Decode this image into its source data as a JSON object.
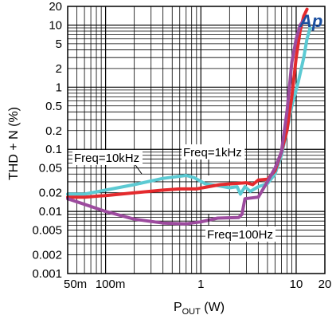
{
  "chart_data": {
    "type": "line",
    "title": "",
    "xlabel": {
      "main": "P",
      "sub": "OUT",
      "unit": " (W)"
    },
    "ylabel": "THD + N (%)",
    "x_scale": "log",
    "y_scale": "log",
    "xlim": [
      0.04,
      20
    ],
    "ylim": [
      0.001,
      20
    ],
    "grid": true,
    "x_ticks": [
      {
        "value": 0.05,
        "label": "50m"
      },
      {
        "value": 0.1,
        "label": "100m"
      },
      {
        "value": 1,
        "label": "1"
      },
      {
        "value": 10,
        "label": "10"
      },
      {
        "value": 20,
        "label": "20"
      }
    ],
    "y_ticks": [
      {
        "value": 20,
        "label": "20"
      },
      {
        "value": 10,
        "label": "10"
      },
      {
        "value": 5,
        "label": "5"
      },
      {
        "value": 2,
        "label": "2"
      },
      {
        "value": 1,
        "label": "1"
      },
      {
        "value": 0.5,
        "label": "0.5"
      },
      {
        "value": 0.2,
        "label": "0.2"
      },
      {
        "value": 0.1,
        "label": "0.1"
      },
      {
        "value": 0.05,
        "label": "0.05"
      },
      {
        "value": 0.02,
        "label": "0.02"
      },
      {
        "value": 0.01,
        "label": "0.01"
      },
      {
        "value": 0.005,
        "label": "0.005"
      },
      {
        "value": 0.002,
        "label": "0.002"
      },
      {
        "value": 0.001,
        "label": "0.001"
      }
    ],
    "series": [
      {
        "name": "Freq=10kHz",
        "color": "#5ccad3",
        "points": [
          [
            0.04,
            0.019
          ],
          [
            0.06,
            0.019
          ],
          [
            0.1,
            0.022
          ],
          [
            0.2,
            0.027
          ],
          [
            0.4,
            0.034
          ],
          [
            0.7,
            0.038
          ],
          [
            0.85,
            0.035
          ],
          [
            1.1,
            0.028
          ],
          [
            1.5,
            0.026
          ],
          [
            2.0,
            0.024
          ],
          [
            2.4,
            0.025
          ],
          [
            2.6,
            0.019
          ],
          [
            2.9,
            0.025
          ],
          [
            3.3,
            0.021
          ],
          [
            4.0,
            0.025
          ],
          [
            5.0,
            0.028
          ],
          [
            6.0,
            0.04
          ],
          [
            7.0,
            0.08
          ],
          [
            8.0,
            0.2
          ],
          [
            9.0,
            0.5
          ],
          [
            10.5,
            1.2
          ],
          [
            12,
            3
          ],
          [
            13,
            6
          ],
          [
            14,
            9
          ]
        ]
      },
      {
        "name": "Freq=1kHz",
        "color": "#e42a2d",
        "points": [
          [
            0.04,
            0.017
          ],
          [
            0.06,
            0.017
          ],
          [
            0.1,
            0.018
          ],
          [
            0.2,
            0.02
          ],
          [
            0.4,
            0.022
          ],
          [
            0.6,
            0.023
          ],
          [
            0.9,
            0.023
          ],
          [
            1.2,
            0.025
          ],
          [
            1.6,
            0.027
          ],
          [
            2.2,
            0.028
          ],
          [
            3.0,
            0.029
          ],
          [
            3.5,
            0.027
          ],
          [
            4.0,
            0.032
          ],
          [
            5.0,
            0.033
          ],
          [
            6.0,
            0.045
          ],
          [
            7.0,
            0.09
          ],
          [
            8.0,
            0.2
          ],
          [
            9.0,
            0.7
          ],
          [
            10,
            3
          ],
          [
            11,
            8
          ],
          [
            12,
            14
          ],
          [
            13,
            18
          ]
        ]
      },
      {
        "name": "Freq=100Hz",
        "color": "#9c4b9e",
        "points": [
          [
            0.04,
            0.016
          ],
          [
            0.06,
            0.013
          ],
          [
            0.1,
            0.01
          ],
          [
            0.2,
            0.0075
          ],
          [
            0.4,
            0.0065
          ],
          [
            0.7,
            0.0063
          ],
          [
            1.0,
            0.0068
          ],
          [
            1.5,
            0.0078
          ],
          [
            2.5,
            0.008
          ],
          [
            2.7,
            0.009
          ],
          [
            2.9,
            0.016
          ],
          [
            4.0,
            0.017
          ],
          [
            5.0,
            0.03
          ],
          [
            6.0,
            0.05
          ],
          [
            7.0,
            0.09
          ],
          [
            8.0,
            0.4
          ],
          [
            9.0,
            2.5
          ],
          [
            10,
            6
          ],
          [
            11,
            10
          ],
          [
            12,
            12
          ]
        ]
      }
    ],
    "annotations": [
      {
        "text": "Freq=10kHz",
        "series": "Freq=10kHz"
      },
      {
        "text": "Freq=1kHz",
        "series": "Freq=1kHz"
      },
      {
        "text": "Freq=100Hz",
        "series": "Freq=100Hz"
      }
    ]
  }
}
